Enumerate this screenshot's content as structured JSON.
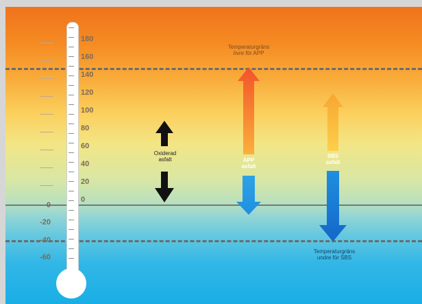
{
  "scale_left": [
    "160",
    "140",
    "120",
    "100",
    "80",
    "60",
    "40",
    "20",
    "0",
    "-20",
    "-40",
    "-60"
  ],
  "scale_right": [
    "180",
    "160",
    "140",
    "120",
    "100",
    "80",
    "60",
    "40",
    "20",
    "0"
  ],
  "labels": {
    "top_limit": "Temperaturgräns\növre för APP",
    "bottom_limit": "Temperaturgräns\nundre för SBS",
    "oxidized": "Oxiderad\nasfalt",
    "app": "APP\nasfalt",
    "sbs": "SBS\nasfalt"
  },
  "colors": {
    "oxidized_arrow": "#111111",
    "app_upper": "#f2522a",
    "app_lower": "#1f8fe0",
    "sbs_upper": "#f7a632",
    "sbs_lower": "#1677d2"
  }
}
